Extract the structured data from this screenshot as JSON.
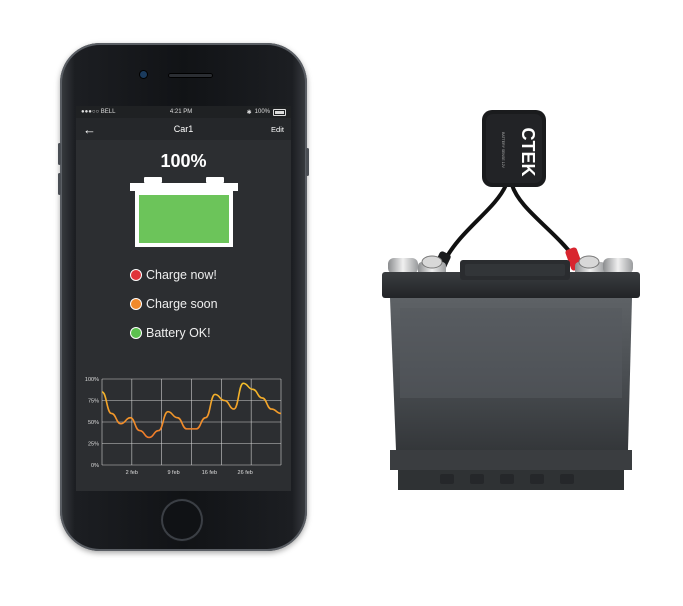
{
  "statusbar": {
    "carrier": "●●●○○ BELL",
    "time": "4:21 PM",
    "battery": "100%"
  },
  "navbar": {
    "back_icon": "arrow-left-icon",
    "title": "Car1",
    "edit": "Edit"
  },
  "battery": {
    "percent": "100%",
    "level": 1.0,
    "fill_color": "#6cc45a"
  },
  "legend": [
    {
      "label": "Charge now!",
      "color": "#e0333a"
    },
    {
      "label": "Charge soon",
      "color": "#f0892a"
    },
    {
      "label": "Battery OK!",
      "color": "#5cc04f"
    }
  ],
  "chart_data": {
    "type": "line",
    "y_ticks": [
      "100%",
      "75%",
      "50%",
      "25%",
      "0%"
    ],
    "x_ticks": [
      "2 feb",
      "9 feb",
      "16 feb",
      "26 feb"
    ],
    "ylim": [
      0,
      100
    ],
    "grid": true,
    "series": [
      {
        "color_gradient": [
          "#f5c02a",
          "#f07a2a"
        ],
        "values": [
          85,
          60,
          48,
          55,
          40,
          32,
          40,
          62,
          55,
          42,
          42,
          55,
          82,
          75,
          65,
          95,
          88,
          78,
          65,
          60
        ]
      }
    ]
  },
  "device": {
    "brand": "CTEK",
    "small_text": "BATTERY SENSE 12V"
  }
}
